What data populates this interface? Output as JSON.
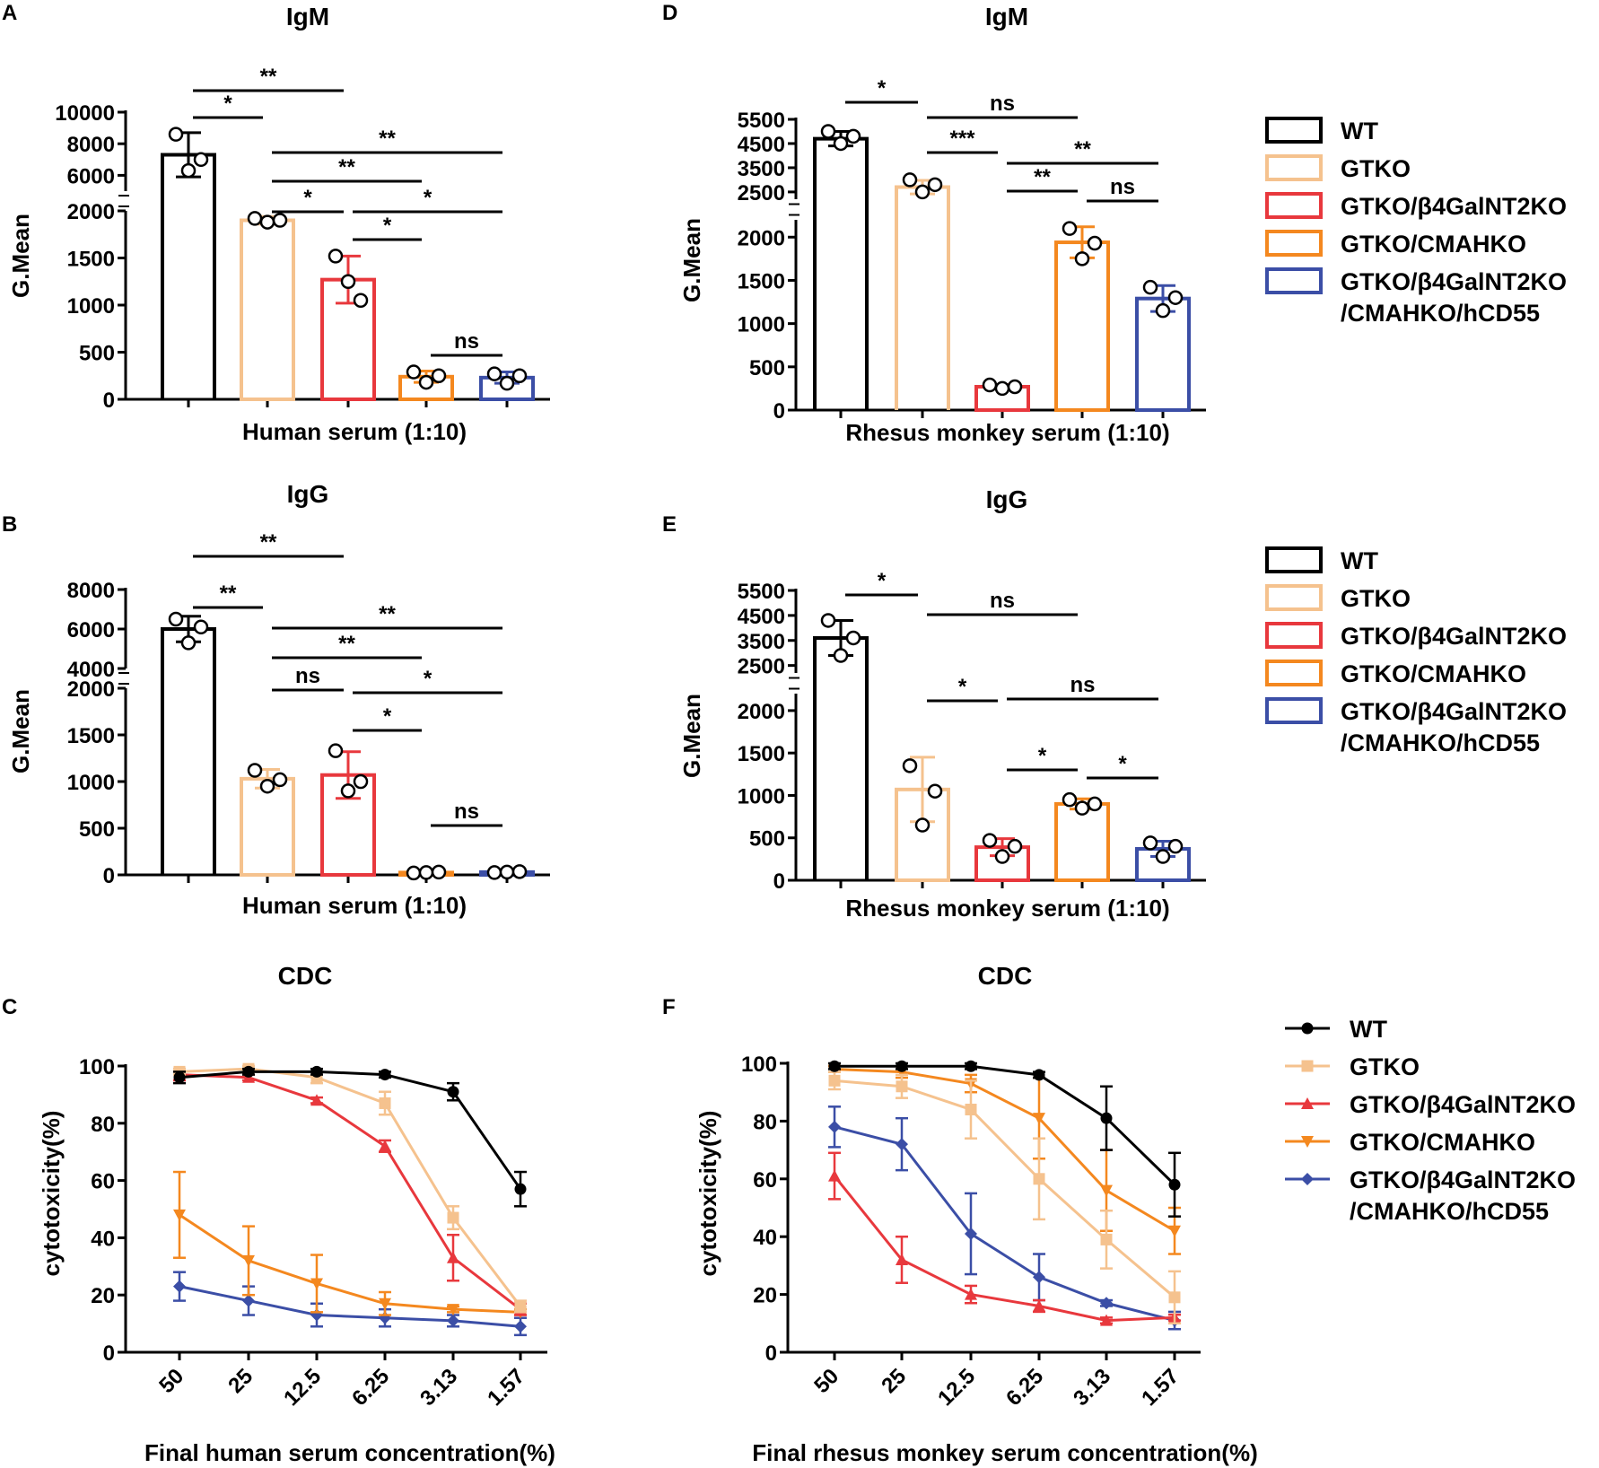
{
  "panels": {
    "A": {
      "letter": "A",
      "title": "IgM",
      "ylabel": "G.Mean",
      "xlabel": "Human serum (1:10)"
    },
    "B": {
      "letter": "B",
      "title": "IgG",
      "ylabel": "G.Mean",
      "xlabel": "Human serum (1:10)"
    },
    "C": {
      "letter": "C",
      "title": "CDC",
      "ylabel": "cytotoxicity(%)",
      "xlabel": "Final human serum concentration(%)"
    },
    "D": {
      "letter": "D",
      "title": "IgM",
      "ylabel": "G.Mean",
      "xlabel": "Rhesus monkey serum (1:10)"
    },
    "E": {
      "letter": "E",
      "title": "IgG",
      "ylabel": "G.Mean",
      "xlabel": "Rhesus monkey serum (1:10)"
    },
    "F": {
      "letter": "F",
      "title": "CDC",
      "ylabel": "cytotoxicity(%)",
      "xlabel": "Final  rhesus monkey serum concentration(%)"
    }
  },
  "legend": {
    "items": [
      {
        "label": "WT",
        "color": "#000000"
      },
      {
        "label": "GTKO",
        "color": "#f5c28e"
      },
      {
        "label": "GTKO/β4GalNT2KO",
        "color": "#e8383d"
      },
      {
        "label": "GTKO/CMAHKO",
        "color": "#f4881f"
      },
      {
        "label": "GTKO/β4GalNT2KO",
        "label2": "/CMAHKO/hCD55",
        "color": "#3b4ea6"
      }
    ]
  },
  "chart_data": [
    {
      "panel": "A",
      "type": "bar",
      "title": "IgM",
      "xlabel": "Human serum (1:10)",
      "ylabel": "G.Mean",
      "categories": [
        "WT",
        "GTKO",
        "GTKO/β4GalNT2KO",
        "GTKO/CMAHKO",
        "GTKO/β4GalNT2KO/CMAHKO/hCD55"
      ],
      "values": [
        7300,
        1900,
        1270,
        240,
        230
      ],
      "errors": [
        1400,
        40,
        250,
        60,
        60
      ],
      "points": [
        [
          8600,
          6300,
          7000
        ],
        [
          1920,
          1880,
          1900
        ],
        [
          1520,
          1250,
          1050
        ],
        [
          290,
          180,
          250
        ],
        [
          270,
          170,
          250
        ]
      ],
      "axis_break": {
        "lower": [
          0,
          2000
        ],
        "upper": [
          5000,
          10000
        ]
      },
      "yticks_lower": [
        0,
        500,
        1000,
        1500,
        2000
      ],
      "yticks_upper": [
        6000,
        8000,
        10000
      ],
      "significance": [
        {
          "from": 0,
          "to": 2,
          "label": "**"
        },
        {
          "from": 0,
          "to": 1,
          "label": "*"
        },
        {
          "from": 1,
          "to": 4,
          "label": "**"
        },
        {
          "from": 1,
          "to": 3,
          "label": "**"
        },
        {
          "from": 1,
          "to": 2,
          "label": "*"
        },
        {
          "from": 2,
          "to": 4,
          "label": "*"
        },
        {
          "from": 2,
          "to": 3,
          "label": "*"
        },
        {
          "from": 3,
          "to": 4,
          "label": "ns"
        }
      ]
    },
    {
      "panel": "B",
      "type": "bar",
      "title": "IgG",
      "xlabel": "Human serum (1:10)",
      "ylabel": "G.Mean",
      "categories": [
        "WT",
        "GTKO",
        "GTKO/β4GalNT2KO",
        "GTKO/CMAHKO",
        "GTKO/β4GalNT2KO/CMAHKO/hCD55"
      ],
      "values": [
        6000,
        1030,
        1070,
        25,
        30
      ],
      "errors": [
        650,
        100,
        250,
        10,
        10
      ],
      "points": [
        [
          6500,
          5300,
          6100
        ],
        [
          1120,
          950,
          1020
        ],
        [
          1330,
          900,
          1000
        ],
        [
          20,
          25,
          30
        ],
        [
          25,
          30,
          35
        ]
      ],
      "axis_break": {
        "lower": [
          0,
          2000
        ],
        "upper": [
          4000,
          8000
        ]
      },
      "yticks_lower": [
        0,
        500,
        1000,
        1500,
        2000
      ],
      "yticks_upper": [
        4000,
        6000,
        8000
      ],
      "significance": [
        {
          "from": 0,
          "to": 2,
          "label": "**"
        },
        {
          "from": 0,
          "to": 1,
          "label": "**"
        },
        {
          "from": 1,
          "to": 4,
          "label": "**"
        },
        {
          "from": 1,
          "to": 3,
          "label": "**"
        },
        {
          "from": 1,
          "to": 2,
          "label": "ns"
        },
        {
          "from": 2,
          "to": 4,
          "label": "*"
        },
        {
          "from": 2,
          "to": 3,
          "label": "*"
        },
        {
          "from": 3,
          "to": 4,
          "label": "ns"
        }
      ]
    },
    {
      "panel": "C",
      "type": "line",
      "title": "CDC",
      "xlabel": "Final human serum concentration(%)",
      "ylabel": "cytotoxicity(%)",
      "categories": [
        "50",
        "25",
        "12.5",
        "6.25",
        "3.13",
        "1.57"
      ],
      "ylim": [
        0,
        100
      ],
      "yticks": [
        0,
        20,
        40,
        60,
        80,
        100
      ],
      "series": [
        {
          "name": "WT",
          "values": [
            96,
            98,
            98,
            97,
            91,
            57
          ],
          "errors": [
            2,
            1,
            1,
            1,
            3,
            6
          ]
        },
        {
          "name": "GTKO",
          "values": [
            98,
            99,
            96,
            87,
            47,
            16
          ],
          "errors": [
            1,
            1,
            2,
            4,
            4,
            2
          ]
        },
        {
          "name": "GTKO/β4GalNT2KO",
          "values": [
            97,
            96,
            88,
            72,
            33,
            15
          ],
          "errors": [
            2,
            1,
            1,
            2,
            8,
            2
          ]
        },
        {
          "name": "GTKO/CMAHKO",
          "values": [
            48,
            32,
            24,
            17,
            15,
            14
          ],
          "errors": [
            15,
            12,
            10,
            4,
            1,
            1
          ]
        },
        {
          "name": "GTKO/β4GalNT2KO/CMAHKO/hCD55",
          "values": [
            23,
            18,
            13,
            12,
            11,
            9
          ],
          "errors": [
            5,
            5,
            4,
            3,
            2,
            3
          ]
        }
      ]
    },
    {
      "panel": "D",
      "type": "bar",
      "title": "IgM",
      "xlabel": "Rhesus monkey serum (1:10)",
      "ylabel": "G.Mean",
      "categories": [
        "WT",
        "GTKO",
        "GTKO/β4GalNT2KO",
        "GTKO/CMAHKO",
        "GTKO/β4GalNT2KO/CMAHKO/hCD55"
      ],
      "values": [
        4700,
        2700,
        270,
        1940,
        1290
      ],
      "errors": [
        300,
        280,
        25,
        180,
        150
      ],
      "points": [
        [
          5000,
          4500,
          4800
        ],
        [
          3000,
          2500,
          2800
        ],
        [
          290,
          250,
          270
        ],
        [
          2100,
          1750,
          1930
        ],
        [
          1420,
          1150,
          1300
        ]
      ],
      "axis_break": {
        "lower": [
          0,
          2200
        ],
        "upper": [
          2200,
          5500
        ]
      },
      "yticks_lower": [
        0,
        500,
        1000,
        1500,
        2000
      ],
      "yticks_upper": [
        2500,
        3500,
        4500,
        5500
      ],
      "significance": [
        {
          "from": 0,
          "to": 1,
          "label": "*"
        },
        {
          "from": 1,
          "to": 3,
          "label": "ns"
        },
        {
          "from": 1,
          "to": 2,
          "label": "***"
        },
        {
          "from": 2,
          "to": 4,
          "label": "**"
        },
        {
          "from": 2,
          "to": 3,
          "label": "**"
        },
        {
          "from": 3,
          "to": 4,
          "label": "ns"
        }
      ]
    },
    {
      "panel": "E",
      "type": "bar",
      "title": "IgG",
      "xlabel": "Rhesus monkey serum (1:10)",
      "ylabel": "G.Mean",
      "categories": [
        "WT",
        "GTKO",
        "GTKO/β4GalNT2KO",
        "GTKO/CMAHKO",
        "GTKO/β4GalNT2KO/CMAHKO/hCD55"
      ],
      "values": [
        3600,
        1070,
        390,
        900,
        370
      ],
      "errors": [
        700,
        380,
        100,
        60,
        90
      ],
      "points": [
        [
          4300,
          2900,
          3600
        ],
        [
          1350,
          650,
          1050
        ],
        [
          470,
          280,
          400
        ],
        [
          950,
          850,
          900
        ],
        [
          440,
          280,
          400
        ]
      ],
      "axis_break": {
        "lower": [
          0,
          2200
        ],
        "upper": [
          2200,
          5500
        ]
      },
      "yticks_lower": [
        0,
        500,
        1000,
        1500,
        2000
      ],
      "yticks_upper": [
        2500,
        3500,
        4500,
        5500
      ],
      "significance": [
        {
          "from": 0,
          "to": 1,
          "label": "*"
        },
        {
          "from": 1,
          "to": 3,
          "label": "ns"
        },
        {
          "from": 1,
          "to": 2,
          "label": "*"
        },
        {
          "from": 2,
          "to": 4,
          "label": "ns"
        },
        {
          "from": 2,
          "to": 3,
          "label": "*"
        },
        {
          "from": 3,
          "to": 4,
          "label": "*"
        }
      ]
    },
    {
      "panel": "F",
      "type": "line",
      "title": "CDC",
      "xlabel": "Final  rhesus monkey serum concentration(%)",
      "ylabel": "cytotoxicity(%)",
      "categories": [
        "50",
        "25",
        "12.5",
        "6.25",
        "3.13",
        "1.57"
      ],
      "ylim": [
        0,
        100
      ],
      "yticks": [
        0,
        20,
        40,
        60,
        80,
        100
      ],
      "series": [
        {
          "name": "WT",
          "values": [
            99,
            99,
            99,
            96,
            81,
            58
          ],
          "errors": [
            1,
            1,
            1,
            1,
            11,
            11
          ]
        },
        {
          "name": "GTKO",
          "values": [
            94,
            92,
            84,
            60,
            39,
            19
          ],
          "errors": [
            3,
            4,
            10,
            14,
            10,
            9
          ]
        },
        {
          "name": "GTKO/β4GalNT2KO",
          "values": [
            61,
            32,
            20,
            16,
            11,
            12
          ],
          "errors": [
            8,
            8,
            3,
            2,
            1,
            1
          ]
        },
        {
          "name": "GTKO/CMAHKO",
          "values": [
            98,
            97,
            93,
            81,
            56,
            42
          ],
          "errors": [
            1,
            2,
            3,
            14,
            14,
            8
          ]
        },
        {
          "name": "GTKO/β4GalNT2KO/CMAHKO/hCD55",
          "values": [
            78,
            72,
            41,
            26,
            17,
            11
          ],
          "errors": [
            7,
            9,
            14,
            8,
            1,
            3
          ]
        }
      ]
    }
  ]
}
